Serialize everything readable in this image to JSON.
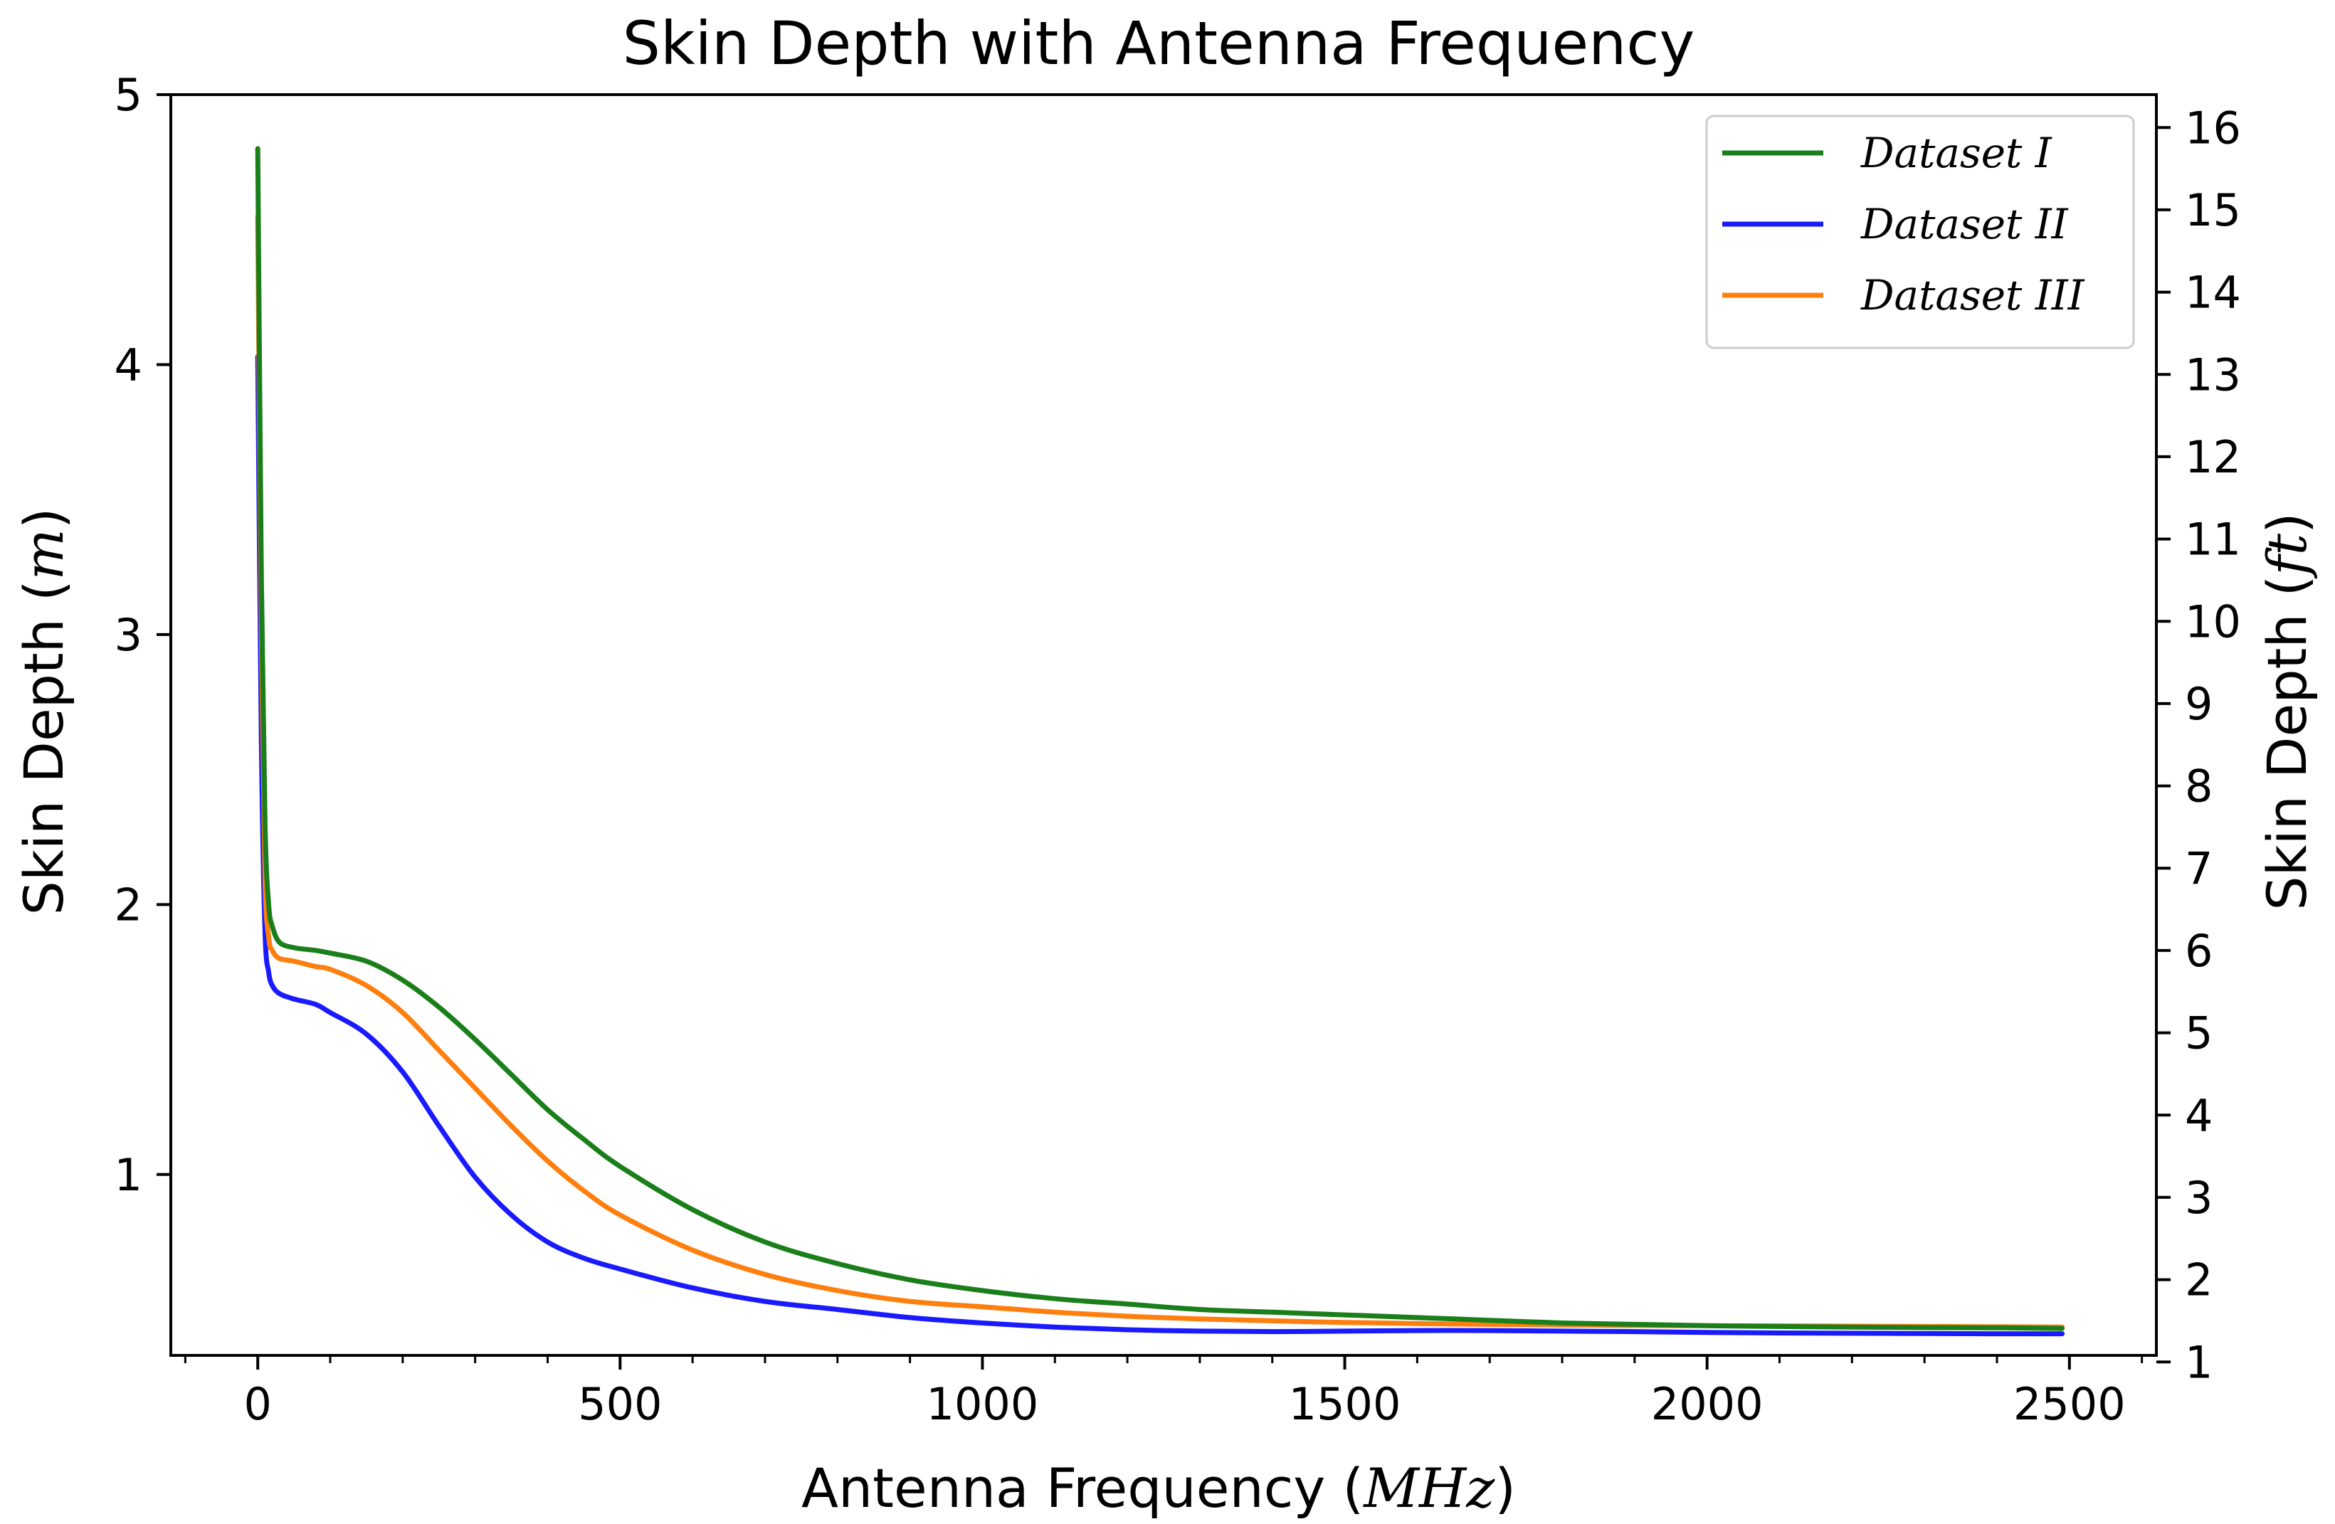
{
  "chart_data": {
    "type": "line",
    "title": "Skin Depth with Antenna Frequency",
    "xlabel": {
      "prefix": "Antenna Frequency (",
      "math": "MHz",
      "suffix": ")"
    },
    "ylabel": {
      "prefix": "Skin Depth (",
      "math": "m",
      "suffix": ")"
    },
    "y2label": {
      "prefix": "Skin Depth (",
      "math": "ft",
      "suffix": ")"
    },
    "xlim": [
      -120,
      2620
    ],
    "ylim": [
      0.33,
      5.0
    ],
    "y2lim": [
      1.08,
      16.4
    ],
    "xticks": [
      0,
      500,
      1000,
      1500,
      2000,
      2500
    ],
    "xtick_labels": [
      "0",
      "500",
      "1000",
      "1500",
      "2000",
      "2500"
    ],
    "yticks": [
      1,
      2,
      3,
      4,
      5
    ],
    "ytick_labels": [
      "1",
      "2",
      "3",
      "4",
      "5"
    ],
    "y2ticks": [
      1,
      2,
      3,
      4,
      5,
      6,
      7,
      8,
      9,
      10,
      11,
      12,
      13,
      14,
      15,
      16
    ],
    "y2tick_labels": [
      "1",
      "2",
      "3",
      "4",
      "5",
      "6",
      "7",
      "8",
      "9",
      "10",
      "11",
      "12",
      "13",
      "14",
      "15",
      "16"
    ],
    "grid": false,
    "legend_position": "top-right",
    "x": [
      0,
      5,
      10,
      15,
      20,
      30,
      50,
      80,
      100,
      150,
      200,
      250,
      300,
      350,
      400,
      450,
      500,
      600,
      700,
      800,
      900,
      1000,
      1100,
      1200,
      1300,
      1400,
      1500,
      1600,
      1700,
      1800,
      1900,
      2000,
      2100,
      2200,
      2300,
      2400,
      2490
    ],
    "series": [
      {
        "name": "Dataset I",
        "color": "#1a7f1a",
        "values": [
          4.8,
          3.2,
          2.3,
          2.0,
          1.92,
          1.86,
          1.84,
          1.83,
          1.82,
          1.79,
          1.72,
          1.62,
          1.5,
          1.37,
          1.24,
          1.13,
          1.03,
          0.87,
          0.75,
          0.67,
          0.61,
          0.57,
          0.54,
          0.52,
          0.5,
          0.49,
          0.48,
          0.47,
          0.46,
          0.45,
          0.445,
          0.44,
          0.437,
          0.435,
          0.433,
          0.432,
          0.43
        ]
      },
      {
        "name": "Dataset II",
        "color": "#1a1aff",
        "values": [
          4.03,
          2.6,
          1.9,
          1.75,
          1.7,
          1.67,
          1.65,
          1.63,
          1.6,
          1.52,
          1.38,
          1.18,
          0.99,
          0.85,
          0.75,
          0.69,
          0.65,
          0.58,
          0.53,
          0.5,
          0.47,
          0.45,
          0.435,
          0.425,
          0.42,
          0.418,
          0.42,
          0.422,
          0.422,
          0.42,
          0.418,
          0.415,
          0.413,
          0.412,
          0.411,
          0.41,
          0.41
        ]
      },
      {
        "name": "Dataset III",
        "color": "#ff7f0e",
        "values": [
          4.55,
          3.0,
          2.1,
          1.88,
          1.83,
          1.8,
          1.79,
          1.77,
          1.76,
          1.7,
          1.6,
          1.46,
          1.32,
          1.18,
          1.05,
          0.94,
          0.85,
          0.72,
          0.63,
          0.57,
          0.53,
          0.51,
          0.49,
          0.475,
          0.465,
          0.458,
          0.452,
          0.448,
          0.445,
          0.443,
          0.441,
          0.44,
          0.439,
          0.438,
          0.437,
          0.436,
          0.435
        ]
      }
    ]
  }
}
